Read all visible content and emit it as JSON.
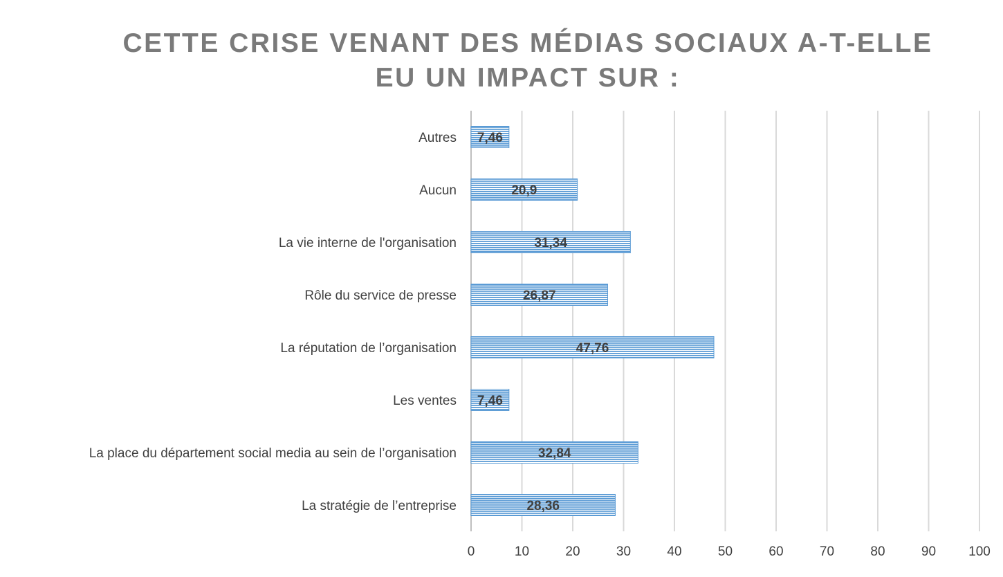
{
  "chart_data": {
    "type": "bar",
    "orientation": "horizontal",
    "title_lines": [
      "CETTE CRISE VENANT DES MÉDIAS SOCIAUX A-T-ELLE",
      "EU UN IMPACT SUR :"
    ],
    "categories": [
      "La stratégie de l’entreprise",
      "La place du département social media au sein de l’organisation",
      "Les ventes",
      "La réputation de l’organisation",
      "Rôle du service de presse",
      "La vie interne de l'organisation",
      "Aucun",
      "Autres"
    ],
    "values": [
      28.36,
      32.84,
      7.46,
      47.76,
      26.87,
      31.34,
      20.9,
      7.46
    ],
    "data_labels": [
      "28,36",
      "32,84",
      "7,46",
      "47,76",
      "26,87",
      "31,34",
      "20,9",
      "7,46"
    ],
    "xlim": [
      0,
      100
    ],
    "xticks": [
      0,
      10,
      20,
      30,
      40,
      50,
      60,
      70,
      80,
      90,
      100
    ],
    "grid": "vertical",
    "legend": "none",
    "bar_color": "#5b9bd5",
    "bar_stripe_color": "#ffffff",
    "grid_color": "#d9d9d9",
    "axis_color": "#bfbfbf",
    "text_color": "#404040",
    "title_color": "#7a7a7a"
  }
}
